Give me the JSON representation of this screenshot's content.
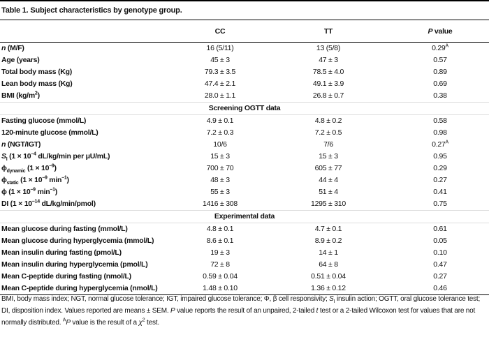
{
  "title": "Table 1. Subject characteristics by genotype group.",
  "table": {
    "header": [
      "CC",
      "TT",
      [
        {
          "i": "P"
        },
        " value"
      ]
    ],
    "sections": [
      {
        "rows": [
          {
            "label": [
              {
                "i": "n"
              },
              " (M/F)"
            ],
            "cells": [
              "16 (5/11)",
              "13 (5/8)",
              [
                "0.29",
                {
                  "sup": "A"
                }
              ]
            ]
          },
          {
            "label": "Age (years)",
            "cells": [
              "45 ± 3",
              "47 ± 3",
              "0.57"
            ]
          },
          {
            "label": "Total body mass (Kg)",
            "cells": [
              "79.3 ± 3.5",
              "78.5 ± 4.0",
              "0.89"
            ]
          },
          {
            "label": "Lean body mass (Kg)",
            "cells": [
              "47.4 ± 2.1",
              "49.1 ± 3.9",
              "0.69"
            ]
          },
          {
            "label": [
              "BMI (kg/m",
              {
                "sup": "2"
              },
              ")"
            ],
            "cells": [
              "28.0 ± 1.1",
              "26.8 ± 0.7",
              "0.38"
            ]
          }
        ]
      },
      {
        "title": "Screening OGTT data",
        "rows": [
          {
            "label": "Fasting glucose (mmol/L)",
            "cells": [
              "4.9 ± 0.1",
              "4.8 ± 0.2",
              "0.58"
            ]
          },
          {
            "label": "120-minute glucose (mmol/L)",
            "cells": [
              "7.2 ± 0.3",
              "7.2 ± 0.5",
              "0.98"
            ]
          },
          {
            "label": [
              {
                "i": "n"
              },
              " (NGT/IGT)"
            ],
            "cells": [
              "10/6",
              "7/6",
              [
                "0.27",
                {
                  "sup": "A"
                }
              ]
            ]
          },
          {
            "label": [
              {
                "i": "S"
              },
              {
                "sub": "I"
              },
              " (1 × 10",
              {
                "sup": "–4"
              },
              " dL/kg/min per μU/mL)"
            ],
            "cells": [
              "15 ± 3",
              "15 ± 3",
              "0.95"
            ]
          },
          {
            "label": [
              "ϕ",
              {
                "sub": "dynamic"
              },
              " (1 × 10",
              {
                "sup": "–9"
              },
              ")"
            ],
            "cells": [
              "700 ± 70",
              "605 ± 77",
              "0.29"
            ]
          },
          {
            "label": [
              "ϕ",
              {
                "sub": "static"
              },
              " (1 × 10",
              {
                "sup": "–9"
              },
              " min",
              {
                "sup": "–1"
              },
              ")"
            ],
            "cells": [
              "48 ± 3",
              "44 ± 4",
              "0.27"
            ]
          },
          {
            "label": [
              "ϕ (1 × 10",
              {
                "sup": "–9"
              },
              " min",
              {
                "sup": "–1"
              },
              ")"
            ],
            "cells": [
              "55 ± 3",
              "51 ± 4",
              "0.41"
            ]
          },
          {
            "label": [
              "DI (1 × 10",
              {
                "sup": "–14"
              },
              " dL/kg/min/pmol)"
            ],
            "cells": [
              "1416 ± 308",
              "1295 ± 310",
              "0.75"
            ]
          }
        ]
      },
      {
        "title": "Experimental data",
        "rows": [
          {
            "label": "Mean glucose during fasting (mmol/L)",
            "cells": [
              "4.8 ± 0.1",
              "4.7 ± 0.1",
              "0.61"
            ]
          },
          {
            "label": "Mean glucose during hyperglycemia (mmol/L)",
            "cells": [
              "8.6 ± 0.1",
              "8.9 ± 0.2",
              "0.05"
            ]
          },
          {
            "label": "Mean insulin during fasting (pmol/L)",
            "cells": [
              "19 ± 3",
              "14 ± 1",
              "0.10"
            ]
          },
          {
            "label": "Mean insulin during hyperglycemia (pmol/L)",
            "cells": [
              "72 ± 8",
              "64 ± 8",
              "0.47"
            ]
          },
          {
            "label": "Mean C-peptide during fasting (nmol/L)",
            "cells": [
              "0.59 ± 0.04",
              "0.51 ± 0.04",
              "0.27"
            ]
          },
          {
            "label": "Mean C-peptide during hyperglycemia (nmol/L)",
            "cells": [
              "1.48 ± 0.10",
              "1.36 ± 0.12",
              "0.46"
            ]
          }
        ]
      }
    ]
  },
  "footnote": [
    "BMI, body mass index; NGT, normal glucose tolerance; IGT, impaired glucose tolerance; Φ, β cell responsivity; ",
    {
      "i": "S"
    },
    {
      "sub": "I"
    },
    " insulin action; OGTT, oral glucose tolerance test; DI, disposition index. Values reported are means ± SEM. ",
    {
      "i": "P"
    },
    " value reports the result of an unpaired, 2-tailed ",
    {
      "i": "t"
    },
    " test or a 2-tailed Wilcoxon test for values that are not normally distributed. ",
    {
      "sup": "A"
    },
    {
      "i": "P"
    },
    " value is the result of a ",
    {
      "i": "χ"
    },
    {
      "sup": "2"
    },
    " test."
  ]
}
